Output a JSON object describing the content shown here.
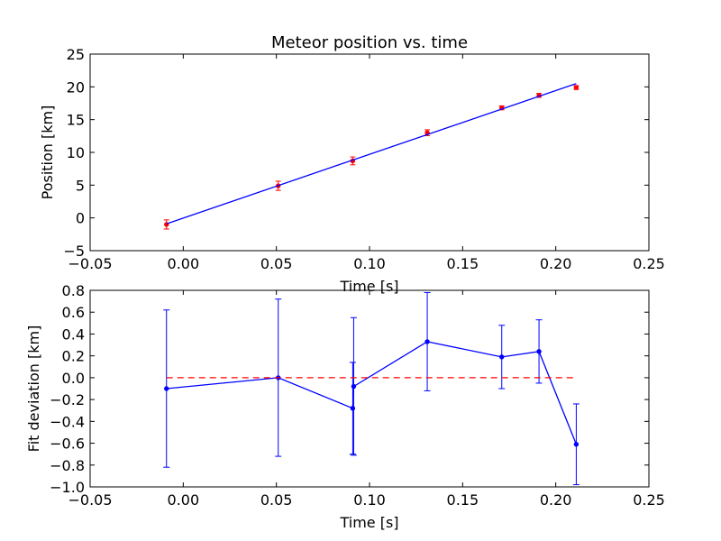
{
  "chart_data": [
    {
      "type": "scatter",
      "title": "Meteor position vs. time",
      "xlabel": "Time [s]",
      "ylabel": "Position [km]",
      "xlim": [
        -0.05,
        0.25
      ],
      "ylim": [
        -5,
        25
      ],
      "xticks": [
        -0.05,
        0.0,
        0.05,
        0.1,
        0.15,
        0.2,
        0.25
      ],
      "xtick_labels": [
        "−0.05",
        "0.00",
        "0.05",
        "0.10",
        "0.15",
        "0.20",
        "0.25"
      ],
      "yticks": [
        -5,
        0,
        5,
        10,
        15,
        20,
        25
      ],
      "ytick_labels": [
        "−5",
        "0",
        "5",
        "10",
        "15",
        "20",
        "25"
      ],
      "grid": false,
      "series": [
        {
          "kind": "errorbar-points",
          "color": "#ff0000",
          "x": [
            -0.009,
            0.051,
            0.091,
            0.131,
            0.171,
            0.191,
            0.211
          ],
          "y": [
            -1.0,
            4.9,
            8.7,
            13.0,
            16.8,
            18.7,
            19.9
          ],
          "yerr": [
            0.7,
            0.7,
            0.6,
            0.45,
            0.3,
            0.3,
            0.3
          ]
        },
        {
          "kind": "fit-line",
          "color": "#0000ff",
          "x": [
            -0.009,
            0.211
          ],
          "y": [
            -0.9,
            20.5
          ]
        }
      ]
    },
    {
      "type": "line",
      "title": "",
      "xlabel": "Time [s]",
      "ylabel": "Fit deviation [km]",
      "xlim": [
        -0.05,
        0.25
      ],
      "ylim": [
        -1.0,
        0.8
      ],
      "xticks": [
        -0.05,
        0.0,
        0.05,
        0.1,
        0.15,
        0.2,
        0.25
      ],
      "xtick_labels": [
        "−0.05",
        "0.00",
        "0.05",
        "0.10",
        "0.15",
        "0.20",
        "0.25"
      ],
      "yticks": [
        -1.0,
        -0.8,
        -0.6,
        -0.4,
        -0.2,
        0.0,
        0.2,
        0.4,
        0.6,
        0.8
      ],
      "ytick_labels": [
        "−1.0",
        "−0.8",
        "−0.6",
        "−0.4",
        "−0.2",
        "0.0",
        "0.2",
        "0.4",
        "0.6",
        "0.8"
      ],
      "grid": false,
      "series": [
        {
          "kind": "errorbar-line",
          "color": "#0000ff",
          "x": [
            -0.009,
            0.051,
            0.091,
            0.0915,
            0.131,
            0.171,
            0.191,
            0.211
          ],
          "y": [
            -0.1,
            0.0,
            -0.28,
            -0.08,
            0.33,
            0.19,
            0.24,
            -0.61
          ],
          "yerr": [
            0.72,
            0.72,
            0.42,
            0.63,
            0.45,
            0.29,
            0.29,
            0.37
          ]
        },
        {
          "kind": "zero-line",
          "color": "#ff0000",
          "dashed": true,
          "x": [
            -0.009,
            0.211
          ],
          "y": [
            0.0,
            0.0
          ]
        }
      ]
    }
  ]
}
